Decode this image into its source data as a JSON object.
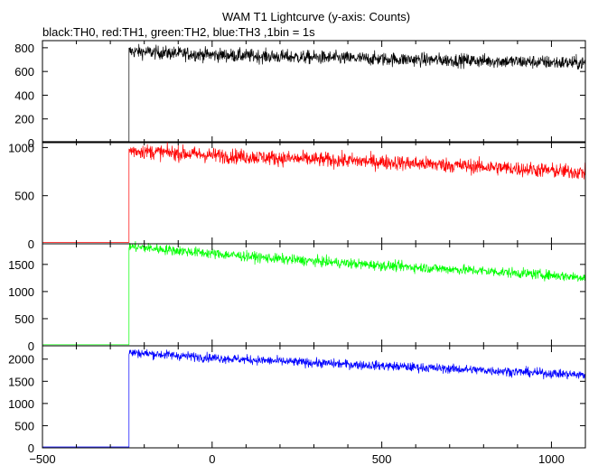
{
  "chart_data": {
    "type": "line",
    "title": "WAM T1 Lightcurve (y-axis: Counts)",
    "subtitle": "black:TH0, red:TH1, green:TH2, blue:TH3 ,1bin = 1s",
    "xlabel": "",
    "ylabel": "",
    "xlim": [
      -500,
      1100
    ],
    "x_ticks": [
      -500,
      0,
      500,
      1000
    ],
    "onset_x": -245,
    "grid": false,
    "legend": "none (series encoded in subtitle text)",
    "panels": [
      {
        "name": "TH0",
        "color": "#000000",
        "ylim": [
          0,
          860
        ],
        "y_ticks": [
          0,
          200,
          400,
          600,
          800
        ],
        "pre_onset_level": 10,
        "trend": [
          [
            -245,
            770
          ],
          [
            0,
            740
          ],
          [
            200,
            725
          ],
          [
            500,
            705
          ],
          [
            800,
            690
          ],
          [
            1100,
            670
          ]
        ],
        "noise": 55
      },
      {
        "name": "TH1",
        "color": "#ff0000",
        "ylim": [
          0,
          1060
        ],
        "y_ticks": [
          0,
          500,
          1000
        ],
        "pre_onset_level": 15,
        "trend": [
          [
            -245,
            970
          ],
          [
            0,
            920
          ],
          [
            200,
            890
          ],
          [
            500,
            850
          ],
          [
            800,
            800
          ],
          [
            1100,
            740
          ]
        ],
        "noise": 75
      },
      {
        "name": "TH2",
        "color": "#00ff00",
        "ylim": [
          0,
          1880
        ],
        "y_ticks": [
          0,
          500,
          1000,
          1500
        ],
        "pre_onset_level": 20,
        "trend": [
          [
            -245,
            1830
          ],
          [
            0,
            1700
          ],
          [
            200,
            1600
          ],
          [
            500,
            1480
          ],
          [
            800,
            1380
          ],
          [
            1100,
            1260
          ]
        ],
        "noise": 90
      },
      {
        "name": "TH3",
        "color": "#0000ff",
        "ylim": [
          0,
          2300
        ],
        "y_ticks": [
          0,
          500,
          1000,
          1500,
          2000
        ],
        "pre_onset_level": 20,
        "trend": [
          [
            -245,
            2150
          ],
          [
            0,
            2030
          ],
          [
            200,
            1950
          ],
          [
            500,
            1850
          ],
          [
            800,
            1750
          ],
          [
            1100,
            1640
          ]
        ],
        "noise": 100
      }
    ]
  }
}
